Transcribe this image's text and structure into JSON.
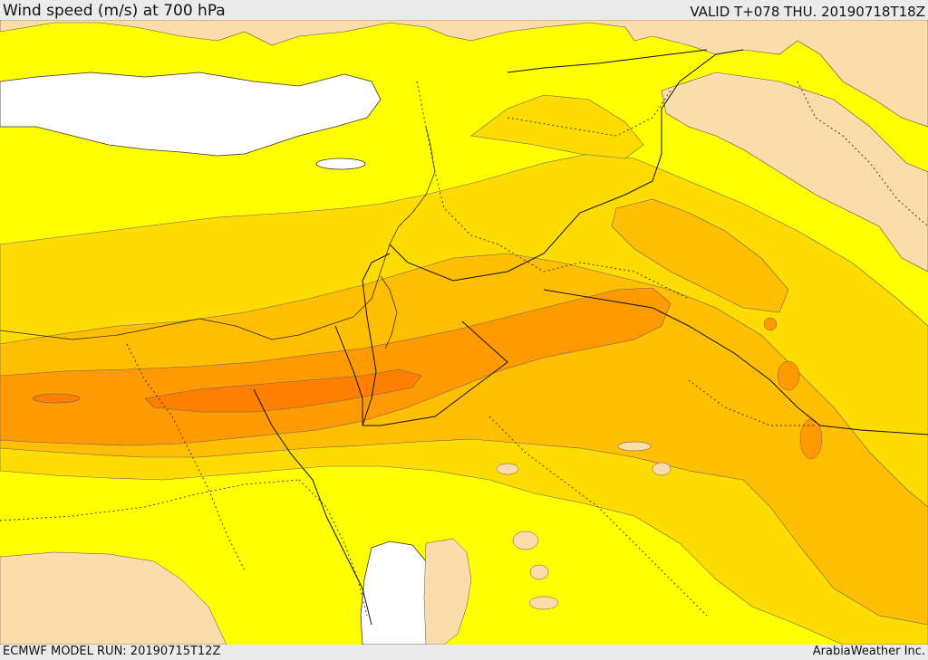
{
  "header": {
    "title": "Wind speed (m/s) at 700 hPa",
    "valid": "VALID T+078 THU. 20190718T18Z"
  },
  "footer": {
    "model_run": "ECMWF MODEL RUN: 20190715T12Z",
    "credit": "ArabiaWeather Inc."
  },
  "colors": {
    "land_low": "#fcdcaa",
    "yellow": "#ffff00",
    "light_orange": "#ffdc00",
    "orange": "#ffbe00",
    "dark_orange": "#ff9b00",
    "deepest": "#ff7f00",
    "sea": "#ffffff",
    "border": "#222222"
  }
}
